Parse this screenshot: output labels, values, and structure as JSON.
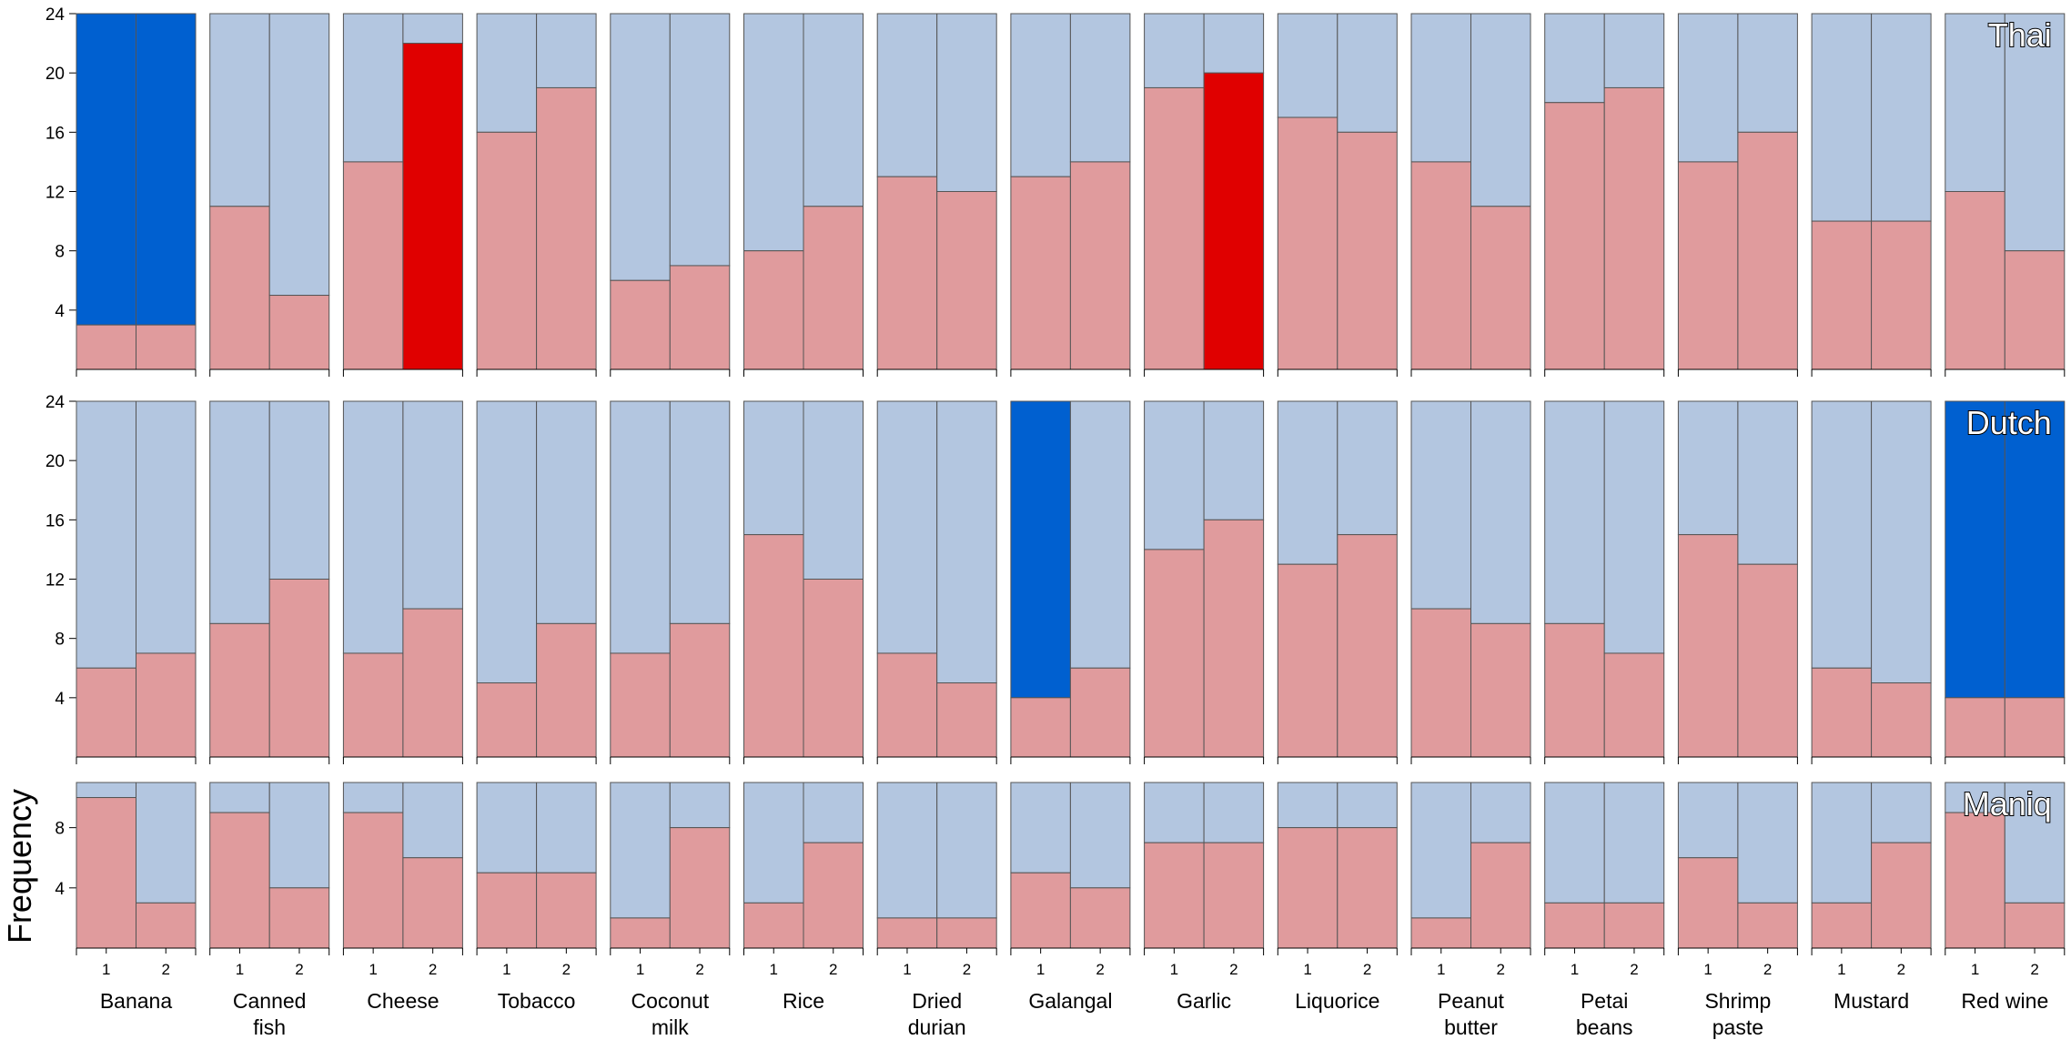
{
  "chart_data": {
    "type": "bar",
    "chart_subtype": "stacked-proportion-bars-faceted",
    "ylabel": "Frequency",
    "xlabel": "",
    "categories": [
      "Banana",
      "Canned fish",
      "Cheese",
      "Tobacco",
      "Coconut milk",
      "Rice",
      "Dried durian",
      "Galangal",
      "Garlic",
      "Liquorice",
      "Peanut butter",
      "Petai beans",
      "Shrimp paste",
      "Mustard",
      "Red wine"
    ],
    "category_lines": [
      [
        "Banana"
      ],
      [
        "Canned",
        "fish"
      ],
      [
        "Cheese"
      ],
      [
        "Tobacco"
      ],
      [
        "Coconut",
        "milk"
      ],
      [
        "Rice"
      ],
      [
        "Dried",
        "durian"
      ],
      [
        "Galangal"
      ],
      [
        "Garlic"
      ],
      [
        "Liquorice"
      ],
      [
        "Peanut",
        "butter"
      ],
      [
        "Petai",
        "beans"
      ],
      [
        "Shrimp",
        "paste"
      ],
      [
        "Mustard"
      ],
      [
        "Red wine"
      ]
    ],
    "bar_labels": [
      "1",
      "2"
    ],
    "colors": {
      "lower": "#e09b9d",
      "upper": "#b3c6e0",
      "highlight_lower": "#e00000",
      "highlight_upper": "#0060d0",
      "frame": "#555555"
    },
    "panels": [
      {
        "name": "Thai",
        "total": 24,
        "ylim": [
          0,
          24
        ],
        "yticks": [
          4,
          8,
          12,
          16,
          20,
          24
        ],
        "show_bar_labels": false,
        "lower_values": [
          [
            3,
            3
          ],
          [
            11,
            5
          ],
          [
            14,
            22
          ],
          [
            16,
            19
          ],
          [
            6,
            7
          ],
          [
            8,
            11
          ],
          [
            13,
            12
          ],
          [
            13,
            14
          ],
          [
            19,
            20
          ],
          [
            17,
            16
          ],
          [
            14,
            11
          ],
          [
            18,
            19
          ],
          [
            14,
            16
          ],
          [
            10,
            10
          ],
          [
            12,
            8
          ]
        ],
        "highlights": [
          [
            "upper",
            "upper"
          ],
          [
            null,
            null
          ],
          [
            null,
            "lower"
          ],
          [
            null,
            null
          ],
          [
            null,
            null
          ],
          [
            null,
            null
          ],
          [
            null,
            null
          ],
          [
            null,
            null
          ],
          [
            null,
            "lower"
          ],
          [
            null,
            null
          ],
          [
            null,
            null
          ],
          [
            null,
            null
          ],
          [
            null,
            null
          ],
          [
            null,
            null
          ],
          [
            null,
            null
          ]
        ]
      },
      {
        "name": "Dutch",
        "total": 24,
        "ylim": [
          0,
          24
        ],
        "yticks": [
          4,
          8,
          12,
          16,
          20,
          24
        ],
        "show_bar_labels": false,
        "lower_values": [
          [
            6,
            7
          ],
          [
            9,
            12
          ],
          [
            7,
            10
          ],
          [
            5,
            9
          ],
          [
            7,
            9
          ],
          [
            15,
            12
          ],
          [
            7,
            5
          ],
          [
            4,
            6
          ],
          [
            14,
            16
          ],
          [
            13,
            15
          ],
          [
            10,
            9
          ],
          [
            9,
            7
          ],
          [
            15,
            13
          ],
          [
            6,
            5
          ],
          [
            4,
            4
          ]
        ],
        "highlights": [
          [
            null,
            null
          ],
          [
            null,
            null
          ],
          [
            null,
            null
          ],
          [
            null,
            null
          ],
          [
            null,
            null
          ],
          [
            null,
            null
          ],
          [
            null,
            null
          ],
          [
            "upper",
            null
          ],
          [
            null,
            null
          ],
          [
            null,
            null
          ],
          [
            null,
            null
          ],
          [
            null,
            null
          ],
          [
            null,
            null
          ],
          [
            null,
            null
          ],
          [
            "upper",
            "upper"
          ]
        ]
      },
      {
        "name": "Maniq",
        "total": 11,
        "ylim": [
          0,
          11
        ],
        "yticks": [
          4,
          8
        ],
        "show_bar_labels": true,
        "lower_values": [
          [
            10,
            3
          ],
          [
            9,
            4
          ],
          [
            9,
            6
          ],
          [
            5,
            5
          ],
          [
            2,
            8
          ],
          [
            3,
            7
          ],
          [
            2,
            2
          ],
          [
            5,
            4
          ],
          [
            7,
            7
          ],
          [
            8,
            8
          ],
          [
            2,
            7
          ],
          [
            3,
            3
          ],
          [
            6,
            3
          ],
          [
            3,
            7
          ],
          [
            9,
            3
          ]
        ],
        "highlights": [
          [
            null,
            null
          ],
          [
            null,
            null
          ],
          [
            null,
            null
          ],
          [
            null,
            null
          ],
          [
            null,
            null
          ],
          [
            null,
            null
          ],
          [
            null,
            null
          ],
          [
            null,
            null
          ],
          [
            null,
            null
          ],
          [
            null,
            null
          ],
          [
            null,
            null
          ],
          [
            null,
            null
          ],
          [
            null,
            null
          ],
          [
            null,
            null
          ],
          [
            null,
            null
          ]
        ]
      }
    ]
  }
}
